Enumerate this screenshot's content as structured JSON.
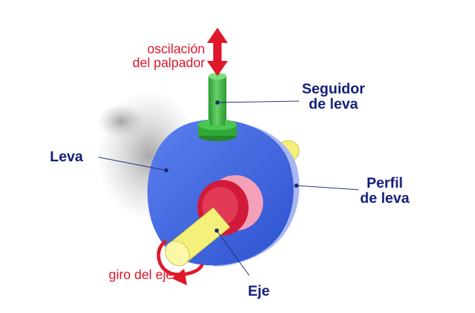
{
  "diagram": {
    "labels": {
      "oscillation_line1": "oscilación",
      "oscillation_line2": "del palpador",
      "follower_line1": "Seguidor",
      "follower_line2": "de leva",
      "cam": "Leva",
      "profile_line1": "Perfil",
      "profile_line2": "de leva",
      "shaft_rotation": "giro del eje",
      "shaft": "Eje"
    },
    "colors": {
      "cam_body": "#3a63e0",
      "cam_profile": "#a9b6f2",
      "follower_rod": "#3bb441",
      "follower_collar": "#2fa838",
      "hub_outer": "#f4a0b8",
      "hub_inner": "#d11a3a",
      "shaft": "#f5f07a",
      "motion_arrows": "#e0182c",
      "leader_lines": "#1c2a6e",
      "label_red": "#e0182c",
      "label_navy": "#15207a"
    }
  }
}
